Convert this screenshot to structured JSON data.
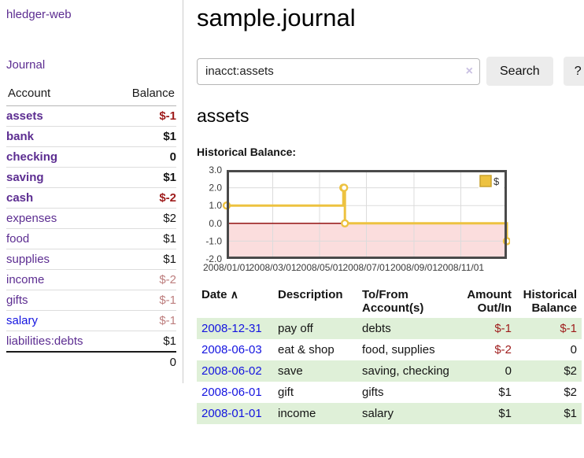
{
  "sidebar": {
    "brand": "hledger-web",
    "journal_label": "Journal",
    "table": {
      "headers": [
        "Account",
        "Balance"
      ],
      "rows": [
        {
          "account": "assets",
          "balance": "$-1",
          "indent": 0,
          "bold": true,
          "balance_style": "negative",
          "link_style": "visited"
        },
        {
          "account": "bank",
          "balance": "$1",
          "indent": 1,
          "bold": true,
          "balance_style": "normal",
          "link_style": "visited"
        },
        {
          "account": "checking",
          "balance": "0",
          "indent": 2,
          "bold": true,
          "balance_style": "normal",
          "link_style": "visited"
        },
        {
          "account": "saving",
          "balance": "$1",
          "indent": 2,
          "bold": true,
          "balance_style": "normal",
          "link_style": "visited"
        },
        {
          "account": "cash",
          "balance": "$-2",
          "indent": 1,
          "bold": true,
          "balance_style": "negative",
          "link_style": "visited"
        },
        {
          "account": "expenses",
          "balance": "$2",
          "indent": 0,
          "bold": false,
          "balance_style": "normal",
          "link_style": "visited"
        },
        {
          "account": "food",
          "balance": "$1",
          "indent": 1,
          "bold": false,
          "balance_style": "normal",
          "link_style": "visited"
        },
        {
          "account": "supplies",
          "balance": "$1",
          "indent": 1,
          "bold": false,
          "balance_style": "normal",
          "link_style": "visited"
        },
        {
          "account": "income",
          "balance": "$-2",
          "indent": 0,
          "bold": false,
          "balance_style": "muted",
          "link_style": "visited"
        },
        {
          "account": "gifts",
          "balance": "$-1",
          "indent": 1,
          "bold": false,
          "balance_style": "muted",
          "link_style": "visited"
        },
        {
          "account": "salary",
          "balance": "$-1",
          "indent": 1,
          "bold": false,
          "balance_style": "muted",
          "link_style": "unvisited"
        },
        {
          "account": "liabilities:debts",
          "balance": "$1",
          "indent": 0,
          "bold": false,
          "balance_style": "normal",
          "link_style": "visited"
        }
      ],
      "total": "0"
    }
  },
  "header": {
    "title": "sample.journal"
  },
  "search": {
    "value": "inacct:assets",
    "clear_icon": "×",
    "button_label": "Search",
    "help_label": "?"
  },
  "account": {
    "title": "assets",
    "chart_label": "Historical Balance:"
  },
  "chart_data": {
    "type": "line",
    "step": true,
    "title": "Historical Balance",
    "xlabel": "",
    "ylabel": "",
    "legend": "$",
    "legend_position": "top-right",
    "grid": true,
    "ylim": [
      -2.0,
      3.0
    ],
    "yticks": [
      3.0,
      2.0,
      1.0,
      0.0,
      -1.0,
      -2.0
    ],
    "xrange": [
      "2008-01-01",
      "2008-12-31"
    ],
    "xticks": [
      {
        "date": "2008-01-01",
        "label": "2008/01/01"
      },
      {
        "date": "2008-03-01",
        "label": "2008/03/01"
      },
      {
        "date": "2008-05-01",
        "label": "2008/05/01"
      },
      {
        "date": "2008-07-01",
        "label": "2008/07/01"
      },
      {
        "date": "2008-09-01",
        "label": "2008/09/01"
      },
      {
        "date": "2008-11-01",
        "label": "2008/11/01"
      }
    ],
    "series": [
      {
        "name": "$",
        "color": "#edc240",
        "points": [
          [
            "2008-01-01",
            1
          ],
          [
            "2008-06-01",
            2
          ],
          [
            "2008-06-02",
            2
          ],
          [
            "2008-06-03",
            0
          ],
          [
            "2008-12-31",
            -1
          ]
        ]
      }
    ],
    "negative_region_fill": "#fbdddd",
    "zero_line_color": "#8b0000",
    "grid_color": "#dcdcdc",
    "border_color": "#4a4a4a"
  },
  "register": {
    "headers": {
      "date": "Date",
      "sort_icon": "∧",
      "description": "Description",
      "accounts": "To/From Account(s)",
      "amount": "Amount Out/In",
      "balance": "Historical Balance"
    },
    "rows": [
      {
        "date": "2008-12-31",
        "description": "pay off",
        "accounts": "debts",
        "amount": "$-1",
        "amount_style": "negative",
        "balance": "$-1",
        "balance_style": "negative"
      },
      {
        "date": "2008-06-03",
        "description": "eat & shop",
        "accounts": "food, supplies",
        "amount": "$-2",
        "amount_style": "negative",
        "balance": "0",
        "balance_style": "normal"
      },
      {
        "date": "2008-06-02",
        "description": "save",
        "accounts": "saving, checking",
        "amount": "0",
        "amount_style": "normal",
        "balance": "$2",
        "balance_style": "normal"
      },
      {
        "date": "2008-06-01",
        "description": "gift",
        "accounts": "gifts",
        "amount": "$1",
        "amount_style": "normal",
        "balance": "$2",
        "balance_style": "normal"
      },
      {
        "date": "2008-01-01",
        "description": "income",
        "accounts": "salary",
        "amount": "$1",
        "amount_style": "normal",
        "balance": "$1",
        "balance_style": "normal"
      }
    ]
  },
  "colors": {
    "link_visited_purple": "#5c2d91",
    "link_unvisited_blue": "#1414e0",
    "negative_red": "#9e1b1b",
    "muted_red": "#bd7e7e",
    "row_stripe_green": "#dff0d8",
    "series_gold": "#edc240",
    "button_gray": "#ececec"
  }
}
